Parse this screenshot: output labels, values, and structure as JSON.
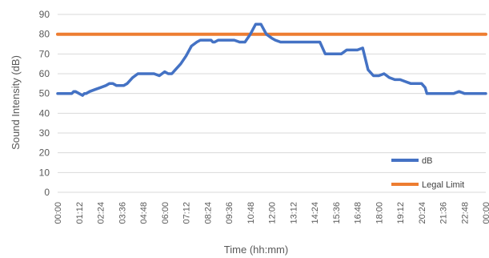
{
  "chart_data": {
    "type": "line",
    "title": "",
    "xlabel": "Time (hh:mm)",
    "ylabel": "Sound Intensity (dB)",
    "ylim": [
      0,
      90
    ],
    "yticks": [
      0,
      10,
      20,
      30,
      40,
      50,
      60,
      70,
      80,
      90
    ],
    "grid": true,
    "legend_position": "bottom-right",
    "x_tick_labels": [
      "00:00",
      "01:12",
      "02:24",
      "03:36",
      "04:48",
      "06:00",
      "07:12",
      "08:24",
      "09:36",
      "10:48",
      "12:00",
      "13:12",
      "14:24",
      "15:36",
      "16:48",
      "18:00",
      "19:12",
      "20:24",
      "21:36",
      "22:48",
      "00:00"
    ],
    "x_tick_minutes": [
      0,
      72,
      144,
      216,
      288,
      360,
      432,
      504,
      576,
      648,
      720,
      792,
      864,
      936,
      1008,
      1080,
      1152,
      1224,
      1296,
      1368,
      1440
    ],
    "series": [
      {
        "name": "dB",
        "color": "#4472c4",
        "x_minutes": [
          0,
          36,
          48,
          54,
          60,
          72,
          84,
          90,
          96,
          108,
          126,
          144,
          162,
          174,
          186,
          198,
          216,
          222,
          234,
          252,
          270,
          288,
          306,
          324,
          342,
          360,
          372,
          384,
          396,
          414,
          432,
          450,
          468,
          480,
          492,
          504,
          516,
          522,
          528,
          540,
          558,
          576,
          594,
          612,
          630,
          648,
          666,
          684,
          702,
          720,
          732,
          750,
          768,
          792,
          810,
          828,
          846,
          864,
          882,
          900,
          918,
          936,
          954,
          972,
          990,
          1008,
          1026,
          1044,
          1062,
          1080,
          1098,
          1116,
          1134,
          1152,
          1170,
          1188,
          1206,
          1224,
          1236,
          1242,
          1260,
          1278,
          1296,
          1314,
          1332,
          1350,
          1368,
          1386,
          1404,
          1422,
          1440
        ],
        "values": [
          50,
          50,
          50,
          51,
          51,
          50,
          49,
          50,
          50,
          51,
          52,
          53,
          54,
          55,
          55,
          54,
          54,
          54,
          55,
          58,
          60,
          60,
          60,
          60,
          59,
          61,
          60,
          60,
          62,
          65,
          69,
          74,
          76,
          77,
          77,
          77,
          77,
          76,
          76,
          77,
          77,
          77,
          77,
          76,
          76,
          80,
          85,
          85,
          80,
          78,
          77,
          76,
          76,
          76,
          76,
          76,
          76,
          76,
          76,
          70,
          70,
          70,
          70,
          72,
          72,
          72,
          73,
          62,
          59,
          59,
          60,
          58,
          57,
          57,
          56,
          55,
          55,
          55,
          53,
          50,
          50,
          50,
          50,
          50,
          50,
          51,
          50,
          50,
          50,
          50,
          50
        ]
      },
      {
        "name": "Legal Limit",
        "color": "#ed7d31",
        "x_minutes": [
          0,
          1440
        ],
        "values": [
          80,
          80
        ]
      }
    ]
  }
}
